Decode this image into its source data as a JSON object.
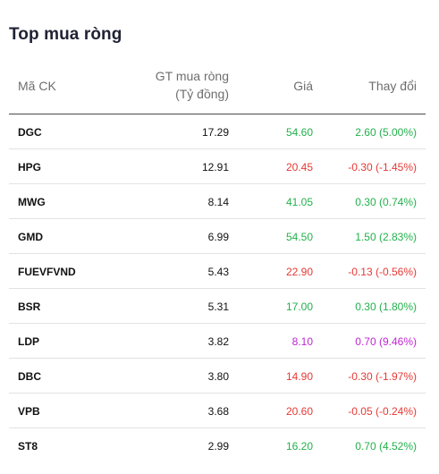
{
  "title": "Top mua ròng",
  "headers": {
    "code": "Mã CK",
    "value_line1": "GT mua ròng",
    "value_line2": "(Tỷ đồng)",
    "price": "Giá",
    "change": "Thay đổi"
  },
  "colors": {
    "up": "#22b14c",
    "down": "#e53935",
    "ceiling": "#c026d3"
  },
  "rows": [
    {
      "code": "DGC",
      "value": "17.29",
      "price": "54.60",
      "change": "2.60 (5.00%)",
      "status": "up"
    },
    {
      "code": "HPG",
      "value": "12.91",
      "price": "20.45",
      "change": "-0.30 (-1.45%)",
      "status": "down"
    },
    {
      "code": "MWG",
      "value": "8.14",
      "price": "41.05",
      "change": "0.30 (0.74%)",
      "status": "up"
    },
    {
      "code": "GMD",
      "value": "6.99",
      "price": "54.50",
      "change": "1.50 (2.83%)",
      "status": "up"
    },
    {
      "code": "FUEVFVND",
      "value": "5.43",
      "price": "22.90",
      "change": "-0.13 (-0.56%)",
      "status": "down"
    },
    {
      "code": "BSR",
      "value": "5.31",
      "price": "17.00",
      "change": "0.30 (1.80%)",
      "status": "up"
    },
    {
      "code": "LDP",
      "value": "3.82",
      "price": "8.10",
      "change": "0.70 (9.46%)",
      "status": "ceil"
    },
    {
      "code": "DBC",
      "value": "3.80",
      "price": "14.90",
      "change": "-0.30 (-1.97%)",
      "status": "down"
    },
    {
      "code": "VPB",
      "value": "3.68",
      "price": "20.60",
      "change": "-0.05 (-0.24%)",
      "status": "down"
    },
    {
      "code": "ST8",
      "value": "2.99",
      "price": "16.20",
      "change": "0.70 (4.52%)",
      "status": "up"
    }
  ]
}
